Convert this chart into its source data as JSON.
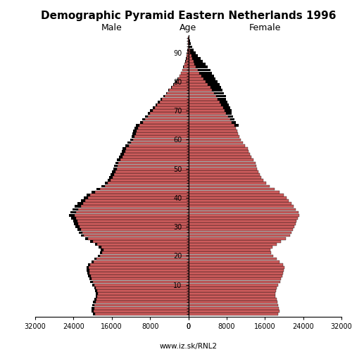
{
  "title": "Demographic Pyramid Eastern Netherlands 1996",
  "male_label": "Male",
  "female_label": "Female",
  "age_label": "Age",
  "source": "www.iz.sk/RNL2",
  "xlim": 32000,
  "bar_color": "#cd5c5c",
  "bar_edge_color": "#000000",
  "black_color": "#000000",
  "ages": [
    0,
    1,
    2,
    3,
    4,
    5,
    6,
    7,
    8,
    9,
    10,
    11,
    12,
    13,
    14,
    15,
    16,
    17,
    18,
    19,
    20,
    21,
    22,
    23,
    24,
    25,
    26,
    27,
    28,
    29,
    30,
    31,
    32,
    33,
    34,
    35,
    36,
    37,
    38,
    39,
    40,
    41,
    42,
    43,
    44,
    45,
    46,
    47,
    48,
    49,
    50,
    51,
    52,
    53,
    54,
    55,
    56,
    57,
    58,
    59,
    60,
    61,
    62,
    63,
    64,
    65,
    66,
    67,
    68,
    69,
    70,
    71,
    72,
    73,
    74,
    75,
    76,
    77,
    78,
    79,
    80,
    81,
    82,
    83,
    84,
    85,
    86,
    87,
    88,
    89,
    90,
    91,
    92,
    93,
    94,
    95
  ],
  "male": [
    19500,
    19800,
    19700,
    19600,
    19400,
    19200,
    19000,
    18900,
    19100,
    19300,
    19600,
    20000,
    20200,
    20400,
    20600,
    20700,
    20800,
    20500,
    19800,
    19200,
    18500,
    18000,
    17800,
    18200,
    19000,
    20000,
    21000,
    21800,
    22200,
    22500,
    22800,
    23000,
    23200,
    23500,
    23800,
    23500,
    23000,
    22500,
    22000,
    21500,
    21000,
    20500,
    19500,
    18500,
    17500,
    16800,
    16200,
    15800,
    15500,
    15200,
    15000,
    14800,
    14600,
    14200,
    13800,
    13500,
    13200,
    13000,
    12500,
    12000,
    11500,
    11200,
    11000,
    10800,
    10500,
    10200,
    9500,
    9000,
    8500,
    8000,
    7500,
    7000,
    6500,
    6000,
    5500,
    5000,
    4500,
    4000,
    3500,
    3000,
    2500,
    2100,
    1800,
    1500,
    1200,
    950,
    750,
    580,
    430,
    310,
    210,
    140,
    90,
    55,
    30,
    15
  ],
  "female": [
    18700,
    19000,
    18900,
    18800,
    18600,
    18400,
    18200,
    18100,
    18300,
    18500,
    18800,
    19200,
    19400,
    19600,
    19800,
    20000,
    20100,
    19800,
    19100,
    18500,
    17800,
    17300,
    17200,
    17600,
    18400,
    19400,
    20400,
    21200,
    21600,
    21900,
    22200,
    22400,
    22600,
    22900,
    23200,
    23000,
    22500,
    22000,
    21500,
    21000,
    20500,
    20000,
    19000,
    18000,
    17000,
    16200,
    15600,
    15200,
    14900,
    14600,
    14400,
    14200,
    14000,
    13600,
    13200,
    12900,
    12600,
    12400,
    11900,
    11400,
    10900,
    10600,
    10400,
    10200,
    9900,
    9700,
    9100,
    8700,
    8300,
    7900,
    7600,
    7300,
    6900,
    6500,
    6100,
    5800,
    5400,
    5000,
    4600,
    4100,
    3600,
    3100,
    2700,
    2300,
    1950,
    1600,
    1300,
    1050,
    820,
    620,
    440,
    300,
    200,
    120,
    65,
    30
  ],
  "male_black": [
    500,
    500,
    500,
    500,
    500,
    400,
    400,
    400,
    400,
    400,
    500,
    500,
    500,
    500,
    500,
    500,
    500,
    500,
    500,
    500,
    400,
    400,
    500,
    500,
    500,
    500,
    500,
    600,
    700,
    700,
    800,
    900,
    900,
    1000,
    1100,
    1200,
    1200,
    1200,
    1100,
    1000,
    900,
    800,
    700,
    700,
    700,
    700,
    700,
    700,
    700,
    700,
    700,
    700,
    700,
    700,
    700,
    700,
    700,
    700,
    700,
    700,
    700,
    700,
    700,
    700,
    700,
    700,
    600,
    600,
    600,
    500,
    500,
    450,
    400,
    350,
    300,
    250,
    200,
    200,
    150,
    150,
    150,
    130,
    110,
    100,
    90,
    80,
    70,
    60,
    50,
    40,
    30,
    20,
    15,
    10,
    5,
    3
  ],
  "female_black": [
    0,
    0,
    0,
    0,
    0,
    0,
    0,
    0,
    0,
    0,
    0,
    0,
    0,
    0,
    0,
    0,
    0,
    0,
    0,
    0,
    0,
    0,
    0,
    0,
    0,
    0,
    0,
    0,
    0,
    0,
    0,
    0,
    0,
    0,
    0,
    0,
    0,
    0,
    0,
    0,
    0,
    0,
    0,
    0,
    0,
    0,
    0,
    0,
    0,
    0,
    0,
    0,
    0,
    0,
    0,
    0,
    0,
    0,
    0,
    0,
    0,
    0,
    0,
    0,
    0,
    800,
    900,
    1000,
    1100,
    1200,
    1400,
    1500,
    1600,
    1700,
    1800,
    2000,
    2100,
    2200,
    2300,
    2400,
    2500,
    2600,
    2700,
    2700,
    2700,
    2500,
    2300,
    2000,
    1700,
    1400,
    1100,
    850,
    630,
    450,
    300,
    150
  ],
  "ytick_ages": [
    10,
    20,
    30,
    40,
    50,
    60,
    70,
    80,
    90
  ],
  "xticks_left": [
    -32000,
    -24000,
    -16000,
    -8000,
    0
  ],
  "xtick_labels_left": [
    "32000",
    "24000",
    "16000",
    "8000",
    "0"
  ],
  "xticks_right": [
    0,
    8000,
    16000,
    24000,
    32000
  ],
  "xtick_labels_right": [
    "0",
    "8000",
    "16000",
    "24000",
    "32000"
  ]
}
